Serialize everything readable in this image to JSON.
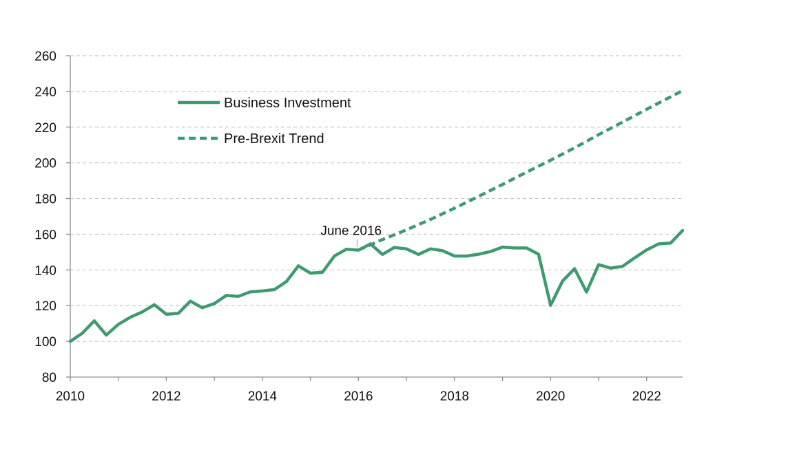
{
  "chart_data": {
    "type": "line",
    "title": "",
    "xlabel": "",
    "ylabel": "",
    "xlim": [
      2010,
      2022.75
    ],
    "ylim": [
      80,
      260
    ],
    "grid": true,
    "legend_position": "top-left",
    "line_color": "#3f9a70",
    "xticks": [
      2010,
      2012,
      2014,
      2016,
      2018,
      2020,
      2022
    ],
    "xtick_labels": [
      "2010",
      "2012",
      "2014",
      "2016",
      "2018",
      "2020",
      "2022"
    ],
    "yticks": [
      80,
      100,
      120,
      140,
      160,
      180,
      200,
      220,
      240,
      260
    ],
    "ytick_labels": [
      "80",
      "100",
      "120",
      "140",
      "160",
      "180",
      "200",
      "220",
      "240",
      "260"
    ],
    "series": [
      {
        "name": "Business Investment",
        "style": "solid",
        "x": [
          2010,
          2010.25,
          2010.5,
          2010.75,
          2011,
          2011.25,
          2011.5,
          2011.75,
          2012,
          2012.25,
          2012.5,
          2012.75,
          2013,
          2013.25,
          2013.5,
          2013.75,
          2014,
          2014.25,
          2014.5,
          2014.75,
          2015,
          2015.25,
          2015.5,
          2015.75,
          2016,
          2016.25,
          2016.5,
          2016.75,
          2017,
          2017.25,
          2017.5,
          2017.75,
          2018,
          2018.25,
          2018.5,
          2018.75,
          2019,
          2019.25,
          2019.5,
          2019.75,
          2020,
          2020.25,
          2020.5,
          2020.75,
          2021,
          2021.25,
          2021.5,
          2021.75,
          2022,
          2022.25,
          2022.5,
          2022.75
        ],
        "values": [
          100,
          104.5,
          111.5,
          103.5,
          109.5,
          113.5,
          116.5,
          120.5,
          115.2,
          115.7,
          122.5,
          118.8,
          121.2,
          125.7,
          125.2,
          127.7,
          128.2,
          129,
          133.5,
          142.3,
          138.2,
          138.7,
          147.8,
          151.6,
          151.1,
          154.6,
          148.7,
          152.6,
          151.8,
          148.7,
          151.8,
          150.8,
          147.8,
          147.8,
          148.8,
          150.3,
          152.8,
          152.3,
          152.3,
          148.8,
          120.2,
          133.8,
          140.7,
          127.6,
          143,
          141,
          142,
          146.8,
          151.2,
          154.6,
          155.1,
          162.1
        ]
      },
      {
        "name": "Pre-Brexit Trend",
        "style": "dashed",
        "x": [
          2016,
          2016.5,
          2017,
          2017.5,
          2018,
          2018.5,
          2019,
          2019.5,
          2020,
          2020.5,
          2021,
          2021.5,
          2022,
          2022.5,
          2022.75
        ],
        "values": [
          151.1,
          157,
          162.5,
          168.3,
          174.6,
          181.2,
          187.9,
          194.8,
          201.5,
          208.4,
          215.8,
          222.8,
          230,
          237,
          240.5
        ]
      }
    ],
    "annotations": [
      {
        "text": "June 2016",
        "x": 2016,
        "y": 151.1
      }
    ]
  }
}
